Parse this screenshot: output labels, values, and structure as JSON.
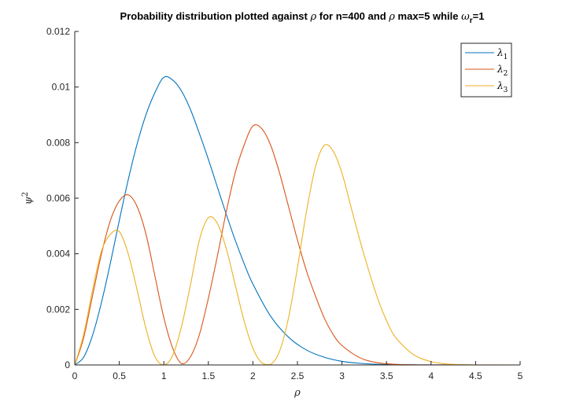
{
  "chart_data": {
    "type": "line",
    "title": {
      "prefix": "Probability distribution plotted against ",
      "rho": "ρ",
      "mid1": " for n=400 and ",
      "mid2": " max=5 while ",
      "omega": "ω",
      "omega_sub": "r",
      "suffix": "=1"
    },
    "xlabel": "ρ",
    "ylabel": {
      "base": "ψ",
      "sup": "2"
    },
    "xlim": [
      0,
      5
    ],
    "ylim": [
      0,
      0.012
    ],
    "xticks": [
      "0",
      "0.5",
      "1",
      "1.5",
      "2",
      "2.5",
      "3",
      "3.5",
      "4",
      "4.5",
      "5"
    ],
    "xtick_values": [
      0,
      0.5,
      1,
      1.5,
      2,
      2.5,
      3,
      3.5,
      4,
      4.5,
      5
    ],
    "yticks": [
      "0",
      "0.002",
      "0.004",
      "0.006",
      "0.008",
      "0.01",
      "0.012"
    ],
    "ytick_values": [
      0,
      0.002,
      0.004,
      0.006,
      0.008,
      0.01,
      0.012
    ],
    "legend_position": "top-right",
    "series": [
      {
        "name": "λ",
        "name_sub": "1",
        "color": "#0072BD",
        "x": [
          0,
          0.1,
          0.2,
          0.3,
          0.4,
          0.5,
          0.6,
          0.7,
          0.8,
          0.9,
          1.0,
          1.1,
          1.2,
          1.3,
          1.4,
          1.5,
          1.6,
          1.7,
          1.8,
          1.9,
          2.0,
          2.2,
          2.4,
          2.6,
          2.8,
          3.0,
          3.2,
          3.4,
          3.6,
          3.8,
          4.0,
          4.5,
          5.0
        ],
        "y": [
          0,
          0.00028,
          0.00107,
          0.00225,
          0.00367,
          0.0052,
          0.00666,
          0.00795,
          0.00901,
          0.0098,
          0.01035,
          0.01025,
          0.00985,
          0.00918,
          0.00832,
          0.0074,
          0.00641,
          0.00543,
          0.0045,
          0.00366,
          0.00291,
          0.00175,
          0.001,
          0.00054,
          0.00028,
          0.00013,
          6e-05,
          2.5e-05,
          1e-05,
          4e-06,
          1.5e-06,
          1e-07,
          0
        ]
      },
      {
        "name": "λ",
        "name_sub": "2",
        "color": "#D95319",
        "x": [
          0,
          0.1,
          0.2,
          0.3,
          0.4,
          0.5,
          0.6,
          0.7,
          0.8,
          0.9,
          1.0,
          1.1,
          1.2,
          1.3,
          1.4,
          1.5,
          1.6,
          1.7,
          1.8,
          1.9,
          2.0,
          2.1,
          2.2,
          2.3,
          2.4,
          2.5,
          2.6,
          2.7,
          2.8,
          2.9,
          3.0,
          3.2,
          3.4,
          3.6,
          3.8,
          4.0,
          4.5,
          5.0
        ],
        "y": [
          0,
          0.00098,
          0.0025,
          0.004,
          0.0052,
          0.0059,
          0.00612,
          0.0057,
          0.0047,
          0.0032,
          0.0017,
          0.0006,
          5e-05,
          0.0003,
          0.0011,
          0.0024,
          0.0039,
          0.0055,
          0.0069,
          0.0079,
          0.0086,
          0.0085,
          0.0079,
          0.0069,
          0.0057,
          0.0045,
          0.0034,
          0.0025,
          0.0017,
          0.0011,
          0.0007,
          0.00026,
          8e-05,
          2.5e-05,
          7e-06,
          2e-06,
          1e-07,
          0
        ]
      },
      {
        "name": "λ",
        "name_sub": "3",
        "color": "#EDB120",
        "x": [
          0,
          0.1,
          0.2,
          0.3,
          0.4,
          0.5,
          0.6,
          0.7,
          0.8,
          0.9,
          1.0,
          1.1,
          1.2,
          1.3,
          1.4,
          1.5,
          1.6,
          1.7,
          1.8,
          1.9,
          2.0,
          2.1,
          2.2,
          2.3,
          2.4,
          2.5,
          2.6,
          2.7,
          2.8,
          2.9,
          3.0,
          3.1,
          3.2,
          3.3,
          3.4,
          3.5,
          3.6,
          3.8,
          4.0,
          4.2,
          4.5,
          5.0
        ],
        "y": [
          0,
          0.0011,
          0.0027,
          0.0041,
          0.0047,
          0.0048,
          0.004,
          0.0027,
          0.0013,
          0.0003,
          0.0,
          0.00035,
          0.0014,
          0.0029,
          0.0045,
          0.0053,
          0.0051,
          0.0042,
          0.0029,
          0.0016,
          0.0006,
          8e-05,
          2e-05,
          0.0005,
          0.0017,
          0.0035,
          0.0055,
          0.0071,
          0.0079,
          0.0077,
          0.0069,
          0.0057,
          0.0045,
          0.0034,
          0.0024,
          0.0016,
          0.001,
          0.00038,
          0.00012,
          3e-05,
          3e-06,
          0
        ]
      }
    ]
  }
}
